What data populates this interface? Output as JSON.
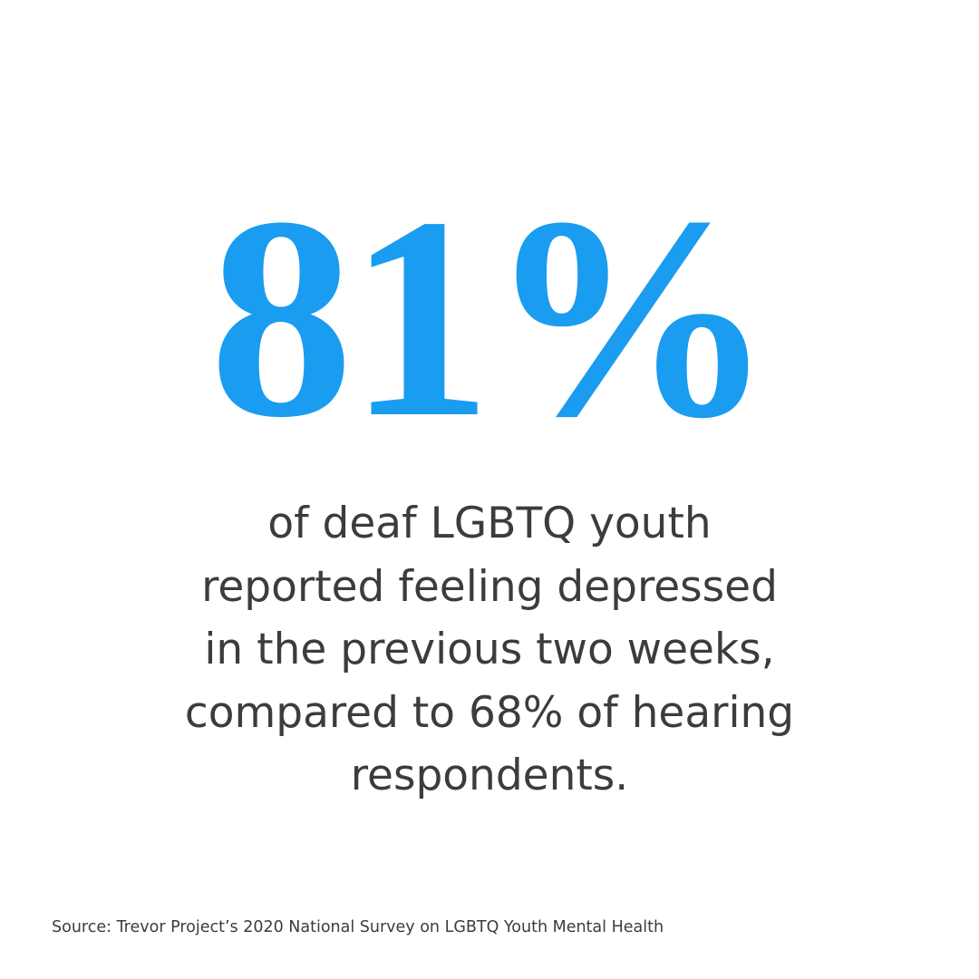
{
  "headline": {
    "stat": "81%"
  },
  "body": {
    "lines": [
      "of deaf LGBTQ youth",
      "reported feeling depressed",
      "in the previous two weeks,",
      "compared to 68% of hearing",
      "respondents."
    ]
  },
  "footer": {
    "source": "Source: Trevor Project’s 2020 National Survey on LGBTQ Youth Mental Health"
  }
}
